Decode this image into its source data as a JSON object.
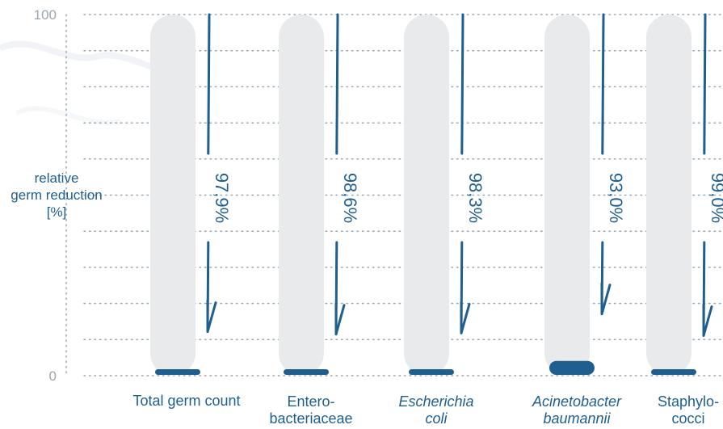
{
  "chart_data": {
    "type": "bar",
    "ylabel": "relative germ reduction [%]",
    "ylabel_lines": [
      "relative",
      "germ reduction",
      "[%]"
    ],
    "ylim": [
      0,
      100
    ],
    "yticks": [
      "0",
      "100"
    ],
    "grid": "horizontal dotted",
    "categories": [
      {
        "lines": [
          "Total germ count"
        ],
        "italic": false
      },
      {
        "lines": [
          "Entero-",
          "bacteriaceae"
        ],
        "italic": false
      },
      {
        "lines": [
          "Escherichia",
          "coli"
        ],
        "italic": true
      },
      {
        "lines": [
          "Acinetobacter",
          "baumannii"
        ],
        "italic": true
      },
      {
        "lines": [
          "Staphylo-",
          "cocci"
        ],
        "italic": false
      }
    ],
    "reductions": [
      97.9,
      98.6,
      98.3,
      93.0,
      99.0
    ],
    "value_labels": [
      "97,9%",
      "98,6%",
      "98,3%",
      "93,0%",
      "99,0%"
    ],
    "colors": {
      "track": "#e8eaec",
      "bar": "#1f5f8f",
      "axis": "#9aa7b2",
      "text": "#1f5f8f"
    }
  }
}
